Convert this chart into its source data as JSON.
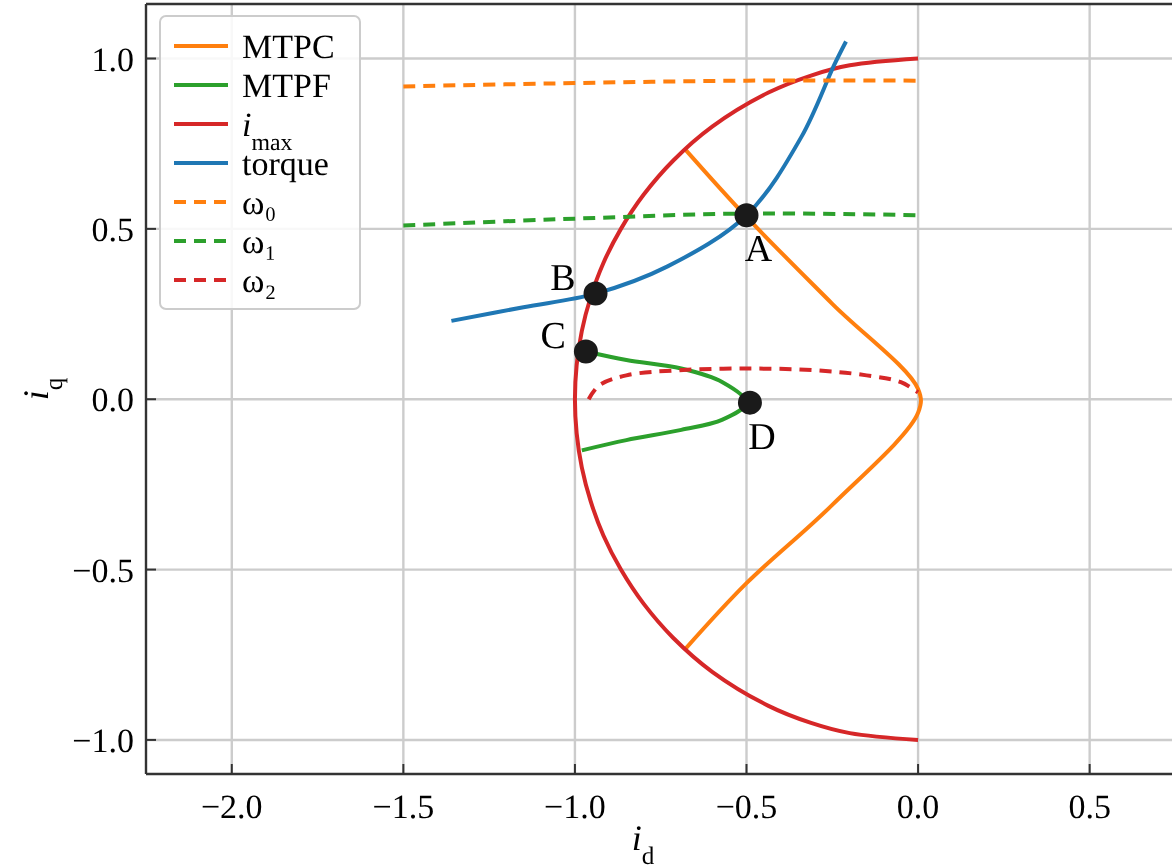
{
  "chart_data": {
    "type": "line",
    "xlabel": "i$_{d}$",
    "ylabel": "i$_{q}$",
    "xlim": [
      -2.25,
      0.74
    ],
    "ylim": [
      -1.1,
      1.16
    ],
    "xticks": [
      {
        "value": -2,
        "label": "−2.0"
      },
      {
        "value": -1.5,
        "label": "−1.5"
      },
      {
        "value": -1,
        "label": "−1.0"
      },
      {
        "value": -0.5,
        "label": "−0.5"
      },
      {
        "value": 0,
        "label": "0.0"
      },
      {
        "value": 0.5,
        "label": "0.5"
      }
    ],
    "yticks": [
      {
        "value": -1,
        "label": "−1.0"
      },
      {
        "value": -0.5,
        "label": "−0.5"
      },
      {
        "value": 0,
        "label": "0.0"
      },
      {
        "value": 0.5,
        "label": "0.5"
      },
      {
        "value": 1,
        "label": "1.0"
      }
    ],
    "grid": true,
    "legend": "top left",
    "marker": "none",
    "series": [
      {
        "name": "MTPC",
        "color": "#ff7f0e",
        "line_style": "solid",
        "x": [
          -0.68,
          -0.5,
          -0.25,
          0,
          0,
          -0.25,
          -0.5,
          -0.68
        ],
        "values": [
          0.735,
          0.535,
          0.28,
          0.03,
          -0.04,
          -0.31,
          -0.54,
          -0.735
        ]
      },
      {
        "name": "MTPF",
        "color": "#2ca02c",
        "line_style": "solid",
        "x": [
          -0.968,
          -0.85,
          -0.69,
          -0.57,
          -0.5,
          -0.57,
          -0.69,
          -0.85,
          -0.98
        ],
        "values": [
          0.14,
          0.115,
          0.09,
          0.05,
          -0.01,
          -0.06,
          -0.09,
          -0.12,
          -0.15
        ]
      },
      {
        "name": "i$_{max}$",
        "color": "#d62728",
        "line_style": "solid",
        "x": [
          0,
          -0.199,
          -0.312,
          -0.436,
          -0.6,
          -0.714,
          -0.8,
          -0.866,
          -0.917,
          -0.954,
          -0.98,
          -0.995,
          -1,
          -0.995,
          -0.98,
          -0.954,
          -0.917,
          -0.866,
          -0.8,
          -0.714,
          -0.6,
          -0.436,
          -0.312,
          -0.199,
          0
        ],
        "values": [
          1,
          0.98,
          0.95,
          0.9,
          0.8,
          0.7,
          0.6,
          0.5,
          0.4,
          0.3,
          0.2,
          0.1,
          0,
          -0.1,
          -0.2,
          -0.3,
          -0.4,
          -0.5,
          -0.6,
          -0.7,
          -0.8,
          -0.9,
          -0.95,
          -0.98,
          -1
        ]
      },
      {
        "name": "torque",
        "color": "#1f77b4",
        "line_style": "solid",
        "x": [
          -1.36,
          -1.15,
          -0.94,
          -0.73,
          -0.5,
          -0.34,
          -0.245,
          -0.21
        ],
        "values": [
          0.23,
          0.27,
          0.31,
          0.39,
          0.54,
          0.77,
          0.98,
          1.05
        ]
      },
      {
        "name": "ω₀",
        "color": "#ff7f0e",
        "line_style": "dashed",
        "x": [
          -1.5,
          -1.0,
          -0.5,
          0
        ],
        "values": [
          0.918,
          0.928,
          0.935,
          0.935
        ]
      },
      {
        "name": "ω₁",
        "color": "#2ca02c",
        "line_style": "dashed",
        "x": [
          -1.5,
          -1.0,
          -0.5,
          0
        ],
        "values": [
          0.51,
          0.53,
          0.545,
          0.54
        ]
      },
      {
        "name": "ω₂",
        "color": "#d62728",
        "line_style": "dashed",
        "x": [
          -0.96,
          -0.93,
          -0.85,
          -0.7,
          -0.5,
          -0.3,
          -0.15,
          -0.05,
          0
        ],
        "values": [
          0.0,
          0.04,
          0.07,
          0.085,
          0.09,
          0.085,
          0.07,
          0.05,
          0.02
        ]
      },
      {
        "type": "scatter",
        "marker": "circle",
        "color": "#1a1a1a",
        "x": [
          -0.5,
          -0.94,
          -0.968,
          -0.49
        ],
        "values": [
          0.54,
          0.31,
          0.14,
          -0.01
        ]
      }
    ],
    "annotations": [
      {
        "text": "A",
        "x": -0.5,
        "y": 0.54
      },
      {
        "text": "B",
        "x": -0.94,
        "y": 0.31
      },
      {
        "text": "C",
        "x": -0.968,
        "y": 0.14
      },
      {
        "text": "D",
        "x": -0.49,
        "y": -0.01
      }
    ]
  }
}
